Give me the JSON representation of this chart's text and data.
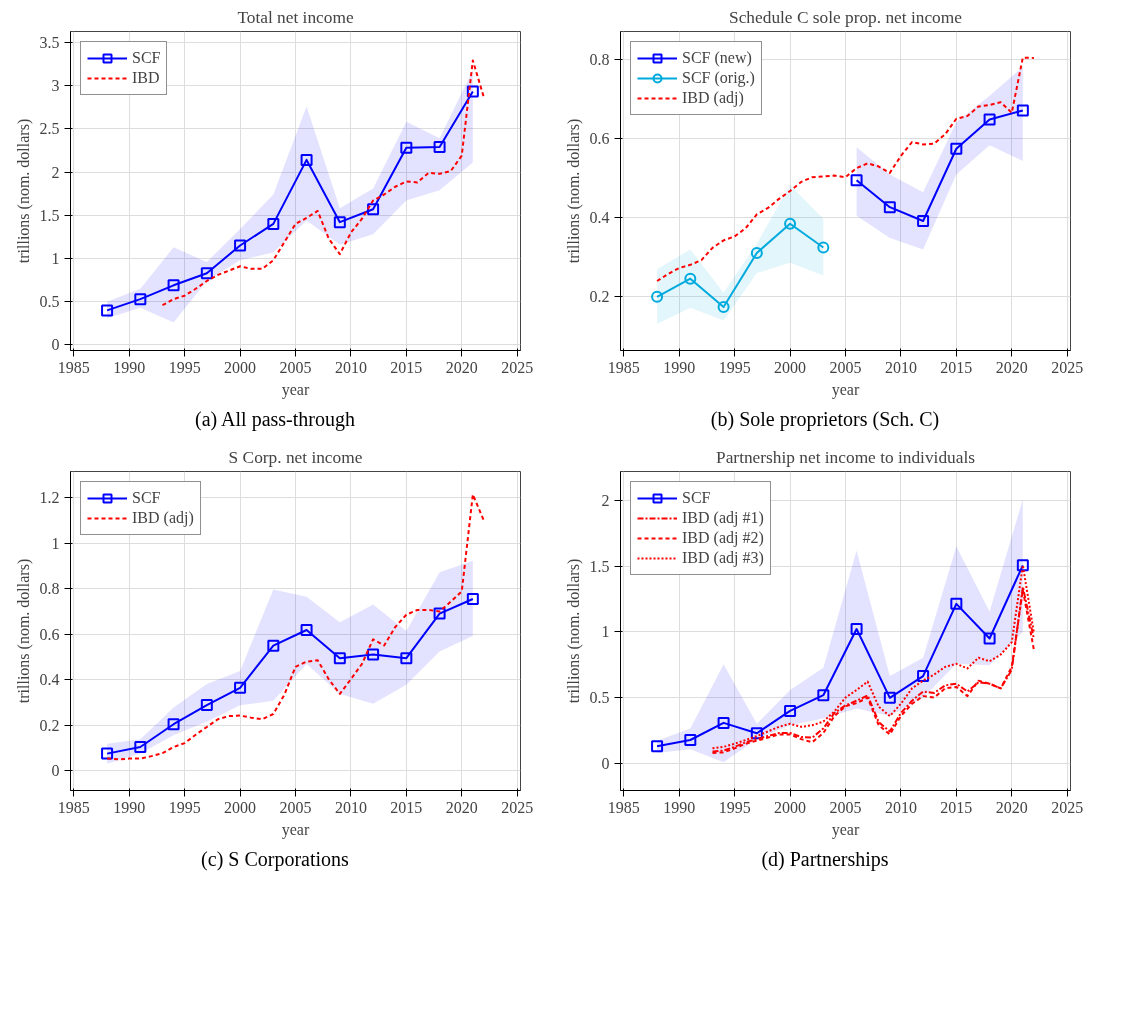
{
  "chart_data": [
    {
      "type": "line",
      "title": "Total net income",
      "xlabel": "year",
      "ylabel": "trillions (nom. dollars)",
      "annotations": [
        "(a) All pass-through"
      ],
      "xlim": [
        1984.7,
        2025.3
      ],
      "xticks": [
        1985,
        1990,
        1995,
        2000,
        2005,
        2010,
        2015,
        2020,
        2025
      ],
      "ylim": [
        -0.064,
        3.625
      ],
      "yticks": [
        0,
        0.5,
        1,
        1.5,
        2,
        2.5,
        3,
        3.5
      ],
      "grid": true,
      "legend": "top left",
      "series": [
        {
          "name": "SCF",
          "color": "#0000ff",
          "marker": "square",
          "line_style": "solid",
          "x": [
            1988,
            1991,
            1994,
            1997,
            2000,
            2003,
            2006,
            2009,
            2012,
            2015,
            2018,
            2021
          ],
          "values": [
            0.4,
            0.53,
            0.69,
            0.83,
            1.15,
            1.4,
            2.14,
            1.42,
            1.57,
            2.28,
            2.29,
            2.93
          ],
          "lower": [
            0.31,
            0.43,
            0.26,
            0.74,
            0.98,
            1.07,
            1.44,
            1.16,
            1.28,
            1.67,
            1.79,
            2.11
          ],
          "upper": [
            0.5,
            0.65,
            1.13,
            0.96,
            1.34,
            1.74,
            2.76,
            1.58,
            1.81,
            2.58,
            2.39,
            3.18
          ]
        },
        {
          "name": "IBD",
          "color": "#ff0000",
          "marker": "none",
          "line_style": "dashed",
          "x": [
            1993,
            1994,
            1995,
            1996,
            1997,
            1998,
            1999,
            2000,
            2001,
            2002,
            2003,
            2004,
            2005,
            2006,
            2007,
            2008,
            2009,
            2010,
            2011,
            2012,
            2013,
            2014,
            2015,
            2016,
            2017,
            2018,
            2019,
            2020,
            2021,
            2022
          ],
          "values": [
            0.46,
            0.53,
            0.57,
            0.65,
            0.74,
            0.81,
            0.86,
            0.91,
            0.88,
            0.88,
            0.98,
            1.19,
            1.4,
            1.47,
            1.55,
            1.23,
            1.05,
            1.3,
            1.46,
            1.67,
            1.74,
            1.83,
            1.89,
            1.88,
            1.99,
            1.98,
            2.01,
            2.19,
            3.29,
            2.86
          ]
        }
      ]
    },
    {
      "type": "line",
      "title": "Schedule C sole prop. net income",
      "xlabel": "year",
      "ylabel": "trillions (nom. dollars)",
      "annotations": [
        "(b) Sole proprietors (Sch. C)"
      ],
      "xlim": [
        1984.7,
        2025.3
      ],
      "xticks": [
        1985,
        1990,
        1995,
        2000,
        2005,
        2010,
        2015,
        2020,
        2025
      ],
      "ylim": [
        0.064,
        0.872
      ],
      "yticks": [
        0.2,
        0.4,
        0.6,
        0.8
      ],
      "grid": true,
      "legend": "top left",
      "series": [
        {
          "name": "SCF (new)",
          "color": "#0000ff",
          "marker": "square",
          "line_style": "solid",
          "x": [
            2006,
            2009,
            2012,
            2015,
            2018,
            2021
          ],
          "values": [
            0.495,
            0.427,
            0.392,
            0.575,
            0.649,
            0.672
          ],
          "lower": [
            0.405,
            0.349,
            0.32,
            0.51,
            0.584,
            0.544
          ],
          "upper": [
            0.579,
            0.51,
            0.465,
            0.643,
            0.709,
            0.783
          ]
        },
        {
          "name": "SCF (orig.)",
          "color": "#00aadd",
          "marker": "circle",
          "line_style": "solid",
          "x": [
            1988,
            1991,
            1994,
            1997,
            2000,
            2003
          ],
          "values": [
            0.2,
            0.246,
            0.174,
            0.311,
            0.385,
            0.325
          ],
          "lower": [
            0.131,
            0.172,
            0.14,
            0.26,
            0.286,
            0.254
          ],
          "upper": [
            0.27,
            0.32,
            0.21,
            0.335,
            0.483,
            0.398
          ]
        },
        {
          "name": "IBD (adj)",
          "color": "#ff0000",
          "marker": "none",
          "line_style": "dashed",
          "x": [
            1988,
            1989,
            1990,
            1991,
            1992,
            1993,
            1994,
            1995,
            1996,
            1997,
            1998,
            1999,
            2000,
            2001,
            2002,
            2003,
            2004,
            2005,
            2006,
            2007,
            2008,
            2009,
            2010,
            2011,
            2012,
            2013,
            2014,
            2015,
            2016,
            2017,
            2018,
            2019,
            2020,
            2021,
            2022
          ],
          "values": [
            0.24,
            0.258,
            0.273,
            0.281,
            0.293,
            0.324,
            0.343,
            0.353,
            0.374,
            0.409,
            0.425,
            0.448,
            0.468,
            0.491,
            0.503,
            0.505,
            0.507,
            0.503,
            0.526,
            0.538,
            0.53,
            0.514,
            0.557,
            0.592,
            0.586,
            0.588,
            0.612,
            0.651,
            0.658,
            0.682,
            0.686,
            0.693,
            0.666,
            0.806,
            0.805
          ]
        }
      ]
    },
    {
      "type": "line",
      "title": "S Corp. net income",
      "xlabel": "year",
      "ylabel": "trillions (nom. dollars)",
      "annotations": [
        "(c) S Corporations"
      ],
      "xlim": [
        1984.7,
        2025.3
      ],
      "xticks": [
        1985,
        1990,
        1995,
        2000,
        2005,
        2010,
        2015,
        2020,
        2025
      ],
      "ylim": [
        -0.086,
        1.315
      ],
      "yticks": [
        0,
        0.2,
        0.4,
        0.6,
        0.8,
        1,
        1.2
      ],
      "grid": true,
      "legend": "top left",
      "series": [
        {
          "name": "SCF",
          "color": "#0000ff",
          "marker": "square",
          "line_style": "solid",
          "x": [
            1988,
            1991,
            1994,
            1997,
            2000,
            2003,
            2006,
            2009,
            2012,
            2015,
            2018,
            2021
          ],
          "values": [
            0.076,
            0.105,
            0.205,
            0.289,
            0.365,
            0.55,
            0.619,
            0.495,
            0.511,
            0.495,
            0.691,
            0.755
          ],
          "lower": [
            0.031,
            0.076,
            0.157,
            0.216,
            0.288,
            0.308,
            0.47,
            0.338,
            0.295,
            0.378,
            0.524,
            0.592
          ],
          "upper": [
            0.119,
            0.139,
            0.278,
            0.382,
            0.439,
            0.797,
            0.765,
            0.653,
            0.731,
            0.615,
            0.872,
            0.923
          ]
        },
        {
          "name": "IBD (adj)",
          "color": "#ff0000",
          "marker": "none",
          "line_style": "dashed",
          "x": [
            1988,
            1989,
            1990,
            1991,
            1992,
            1993,
            1994,
            1995,
            1996,
            1997,
            1998,
            1999,
            2000,
            2001,
            2002,
            2003,
            2004,
            2005,
            2006,
            2007,
            2008,
            2009,
            2010,
            2011,
            2012,
            2013,
            2014,
            2015,
            2016,
            2017,
            2018,
            2019,
            2020,
            2021,
            2022
          ],
          "values": [
            0.054,
            0.051,
            0.054,
            0.054,
            0.065,
            0.078,
            0.105,
            0.122,
            0.159,
            0.193,
            0.227,
            0.241,
            0.243,
            0.234,
            0.227,
            0.25,
            0.335,
            0.457,
            0.48,
            0.486,
            0.403,
            0.338,
            0.403,
            0.47,
            0.578,
            0.551,
            0.632,
            0.686,
            0.707,
            0.707,
            0.7,
            0.743,
            0.788,
            1.214,
            1.099
          ]
        }
      ]
    },
    {
      "type": "line",
      "title": "Partnership net income to individuals",
      "xlabel": "year",
      "ylabel": "trillions (nom. dollars)",
      "annotations": [
        "(d) Partnerships"
      ],
      "xlim": [
        1984.7,
        2025.3
      ],
      "xticks": [
        1985,
        1990,
        1995,
        2000,
        2005,
        2010,
        2015,
        2020,
        2025
      ],
      "ylim": [
        -0.203,
        2.217
      ],
      "yticks": [
        0,
        0.5,
        1,
        1.5,
        2
      ],
      "grid": true,
      "legend": "top left",
      "series": [
        {
          "name": "SCF",
          "color": "#0000ff",
          "marker": "square",
          "line_style": "solid",
          "x": [
            1988,
            1991,
            1994,
            1997,
            2000,
            2003,
            2006,
            2009,
            2012,
            2015,
            2018,
            2021
          ],
          "values": [
            0.133,
            0.18,
            0.31,
            0.231,
            0.401,
            0.52,
            1.022,
            0.5,
            0.665,
            1.213,
            0.95,
            1.505
          ],
          "lower": [
            0.082,
            0.11,
            0.012,
            0.187,
            0.292,
            0.343,
            0.42,
            0.362,
            0.5,
            0.758,
            0.747,
            0.997
          ],
          "upper": [
            0.175,
            0.268,
            0.754,
            0.303,
            0.56,
            0.728,
            1.617,
            0.665,
            0.805,
            1.65,
            1.155,
            2.007
          ]
        },
        {
          "name": "IBD (adj #1)",
          "color": "#ff0000",
          "marker": "none",
          "line_style": "dashdot",
          "x": [
            1993,
            1994,
            1995,
            1996,
            1997,
            1998,
            1999,
            2000,
            2001,
            2002,
            2003,
            2004,
            2005,
            2006,
            2007,
            2008,
            2009,
            2010,
            2011,
            2012,
            2013,
            2014,
            2015,
            2016,
            2017,
            2018,
            2019,
            2020,
            2021,
            2022
          ],
          "values": [
            0.093,
            0.1,
            0.128,
            0.163,
            0.187,
            0.21,
            0.233,
            0.233,
            0.203,
            0.198,
            0.268,
            0.385,
            0.443,
            0.478,
            0.518,
            0.315,
            0.245,
            0.385,
            0.478,
            0.548,
            0.537,
            0.595,
            0.607,
            0.548,
            0.618,
            0.607,
            0.572,
            0.712,
            1.342,
            0.945
          ]
        },
        {
          "name": "IBD (adj #2)",
          "color": "#ff0000",
          "marker": "none",
          "line_style": "dashed",
          "x": [
            1993,
            1994,
            1995,
            1996,
            1997,
            1998,
            1999,
            2000,
            2001,
            2002,
            2003,
            2004,
            2005,
            2006,
            2007,
            2008,
            2009,
            2010,
            2011,
            2012,
            2013,
            2014,
            2015,
            2016,
            2017,
            2018,
            2019,
            2020,
            2021,
            2022
          ],
          "values": [
            0.082,
            0.086,
            0.117,
            0.152,
            0.175,
            0.198,
            0.222,
            0.222,
            0.187,
            0.163,
            0.233,
            0.362,
            0.436,
            0.46,
            0.502,
            0.292,
            0.222,
            0.362,
            0.455,
            0.513,
            0.502,
            0.572,
            0.583,
            0.513,
            0.63,
            0.607,
            0.572,
            0.735,
            1.319,
            0.863
          ]
        },
        {
          "name": "IBD (adj #3)",
          "color": "#ff0000",
          "marker": "none",
          "line_style": "dotted",
          "x": [
            1993,
            1994,
            1995,
            1996,
            1997,
            1998,
            1999,
            2000,
            2001,
            2002,
            2003,
            2004,
            2005,
            2006,
            2007,
            2008,
            2009,
            2010,
            2011,
            2012,
            2013,
            2014,
            2015,
            2016,
            2017,
            2018,
            2019,
            2020,
            2021,
            2022
          ],
          "values": [
            0.117,
            0.128,
            0.152,
            0.18,
            0.21,
            0.245,
            0.28,
            0.303,
            0.28,
            0.292,
            0.32,
            0.397,
            0.502,
            0.56,
            0.623,
            0.432,
            0.362,
            0.455,
            0.572,
            0.63,
            0.677,
            0.735,
            0.758,
            0.723,
            0.805,
            0.777,
            0.828,
            0.922,
            1.505,
            0.992
          ]
        }
      ]
    }
  ]
}
